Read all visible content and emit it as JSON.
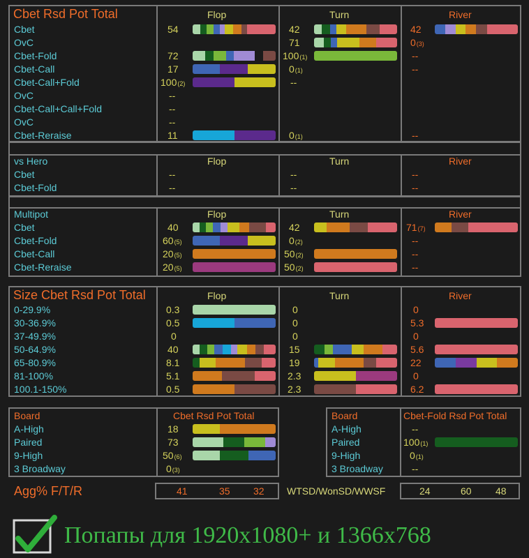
{
  "colors": {
    "label": "#5ccbd6",
    "accent": "#f06d2a",
    "value": "#d6d35c",
    "border": "#7a7a7a",
    "bg": "#1b1b1b"
  },
  "cols": {
    "flop": "Flop",
    "turn": "Turn",
    "river": "River"
  },
  "p1": {
    "title": "Cbet Rsd Pot Total",
    "rows": [
      {
        "label": "Cbet",
        "f": "54",
        "t": "42",
        "r": "42"
      },
      {
        "label": "OvC",
        "f": "",
        "t": "71",
        "r": "0",
        "r_sub": "(3)"
      },
      {
        "label": "Cbet-Fold",
        "f": "72",
        "t": "100",
        "t_sub": "(1)",
        "r": "--"
      },
      {
        "label": "Cbet-Call",
        "f": "17",
        "t": "0",
        "t_sub": "(1)",
        "r": "--"
      },
      {
        "label": "Cbet-Call+Fold",
        "f": "100",
        "f_sub": "(2)",
        "t": "--",
        "r": ""
      },
      {
        "label": "OvC",
        "f": "--",
        "t": "",
        "r": ""
      },
      {
        "label": "Cbet-Call+Call+Fold",
        "f": "--",
        "t": "",
        "r": ""
      },
      {
        "label": "OvC",
        "f": "--",
        "t": "",
        "r": ""
      },
      {
        "label": "Cbet-Reraise",
        "f": "11",
        "t": "0",
        "t_sub": "(1)",
        "r": "--"
      }
    ]
  },
  "p2": {
    "title": "vs Hero",
    "rows": [
      {
        "label": "Cbet",
        "f": "--",
        "t": "--",
        "r": "--"
      },
      {
        "label": "Cbet-Fold",
        "f": "--",
        "t": "--",
        "r": "--"
      }
    ]
  },
  "p3": {
    "title": "Multipot",
    "rows": [
      {
        "label": "Cbet",
        "f": "40",
        "t": "42",
        "r": "71",
        "r_sub": "(7)"
      },
      {
        "label": "Cbet-Fold",
        "f": "60",
        "f_sub": "(5)",
        "t": "0",
        "t_sub": "(2)",
        "r": "--"
      },
      {
        "label": "Cbet-Call",
        "f": "20",
        "f_sub": "(5)",
        "t": "50",
        "t_sub": "(2)",
        "r": "--"
      },
      {
        "label": "Cbet-Reraise",
        "f": "20",
        "f_sub": "(5)",
        "t": "50",
        "t_sub": "(2)",
        "r": "--"
      }
    ]
  },
  "p4": {
    "title": "Size Cbet Rsd Pot Total",
    "rows": [
      {
        "label": "0-29.9%",
        "f": "0.3",
        "t": "0",
        "r": "0"
      },
      {
        "label": "30-36.9%",
        "f": "0.5",
        "t": "0",
        "r": "5.3"
      },
      {
        "label": "37-49.9%",
        "f": "0",
        "t": "0",
        "r": "0"
      },
      {
        "label": "50-64.9%",
        "f": "40",
        "t": "15",
        "r": "5.6"
      },
      {
        "label": "65-80.9%",
        "f": "8.1",
        "t": "19",
        "r": "22"
      },
      {
        "label": "81-100%",
        "f": "5.1",
        "t": "2.3",
        "r": "0"
      },
      {
        "label": "100.1-150%",
        "f": "0.5",
        "t": "2.3",
        "r": "6.2"
      }
    ]
  },
  "board1": {
    "title": "Board",
    "col": "Cbet Rsd Pot Total",
    "rows": [
      {
        "label": "A-High",
        "v": "18"
      },
      {
        "label": "Paired",
        "v": "73"
      },
      {
        "label": "9-High",
        "v": "50",
        "sub": "(6)"
      },
      {
        "label": "3 Broadway",
        "v": "0",
        "sub": "(3)"
      }
    ]
  },
  "board2": {
    "title": "Board",
    "col": "Cbet-Fold Rsd Pot Total",
    "rows": [
      {
        "label": "A-High",
        "v": "--"
      },
      {
        "label": "Paired",
        "v": "100",
        "sub": "(1)"
      },
      {
        "label": "9-High",
        "v": "0",
        "sub": "(1)"
      },
      {
        "label": "3 Broadway",
        "v": "--"
      }
    ]
  },
  "agg": {
    "label": "Agg% F/T/R",
    "f": "41",
    "t": "35",
    "r": "32"
  },
  "wtsd": {
    "label": "WTSD/WonSD/WWSF",
    "a": "24",
    "b": "60",
    "c": "48"
  },
  "footer": {
    "text": "Попапы для 1920х1080+ и 1366х768"
  }
}
